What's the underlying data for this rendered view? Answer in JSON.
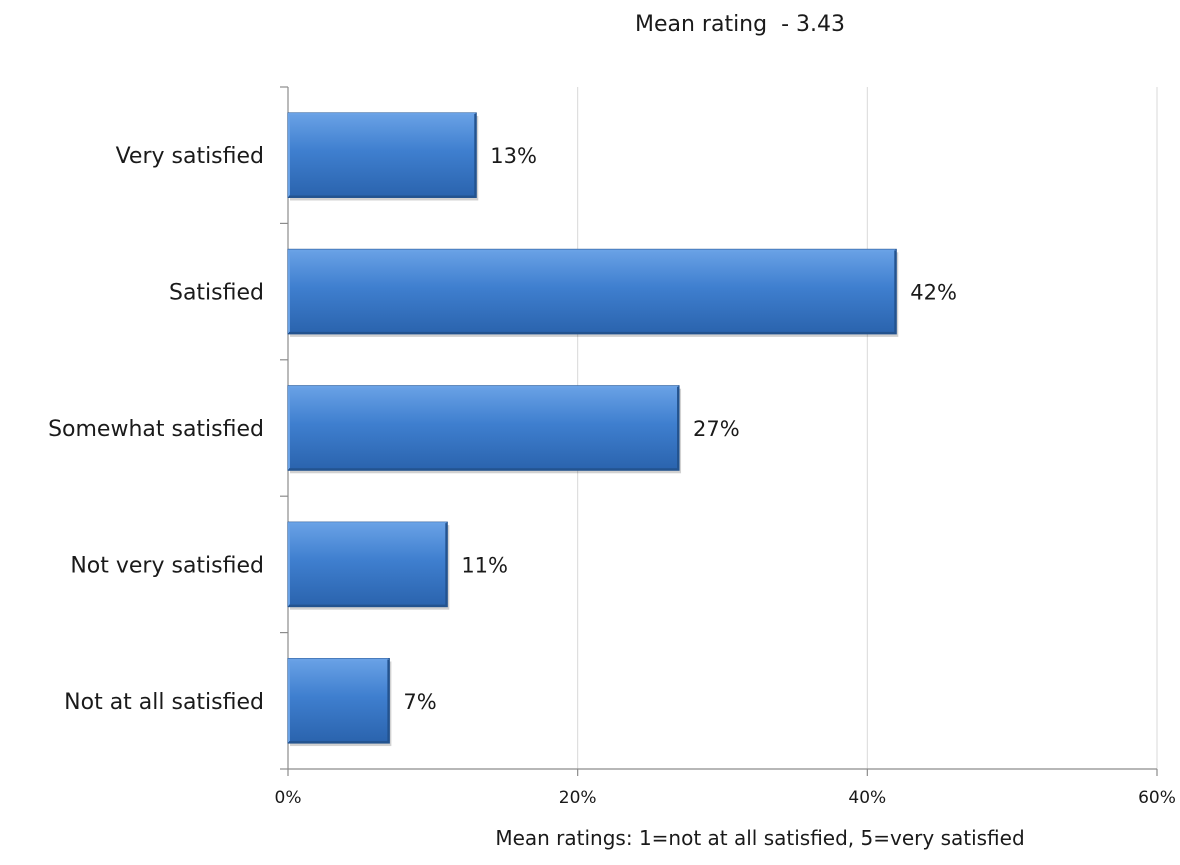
{
  "chart_data": {
    "type": "bar",
    "orientation": "horizontal",
    "title": "Mean rating  - 3.43",
    "footnote": "Mean ratings: 1=not at all satisfied, 5=very satisfied",
    "categories": [
      "Very satisfied",
      "Satisfied",
      "Somewhat satisfied",
      "Not very satisfied",
      "Not at all satisfied"
    ],
    "values": [
      13,
      42,
      27,
      11,
      7
    ],
    "data_labels": [
      "13%",
      "42%",
      "27%",
      "11%",
      "7%"
    ],
    "xlim": [
      0,
      60
    ],
    "x_ticks": [
      0,
      20,
      40,
      60
    ],
    "x_tick_labels": [
      "0%",
      "20%",
      "40%",
      "60%"
    ],
    "xlabel": "",
    "ylabel": "",
    "grid": true,
    "legend": "none",
    "colors": {
      "bar_fill": "#3f7fcf",
      "bar_light": "#6aa2e6",
      "bar_dark": "#23538f",
      "gridline": "#d9d9d9",
      "axis": "#8c8c8c"
    }
  }
}
